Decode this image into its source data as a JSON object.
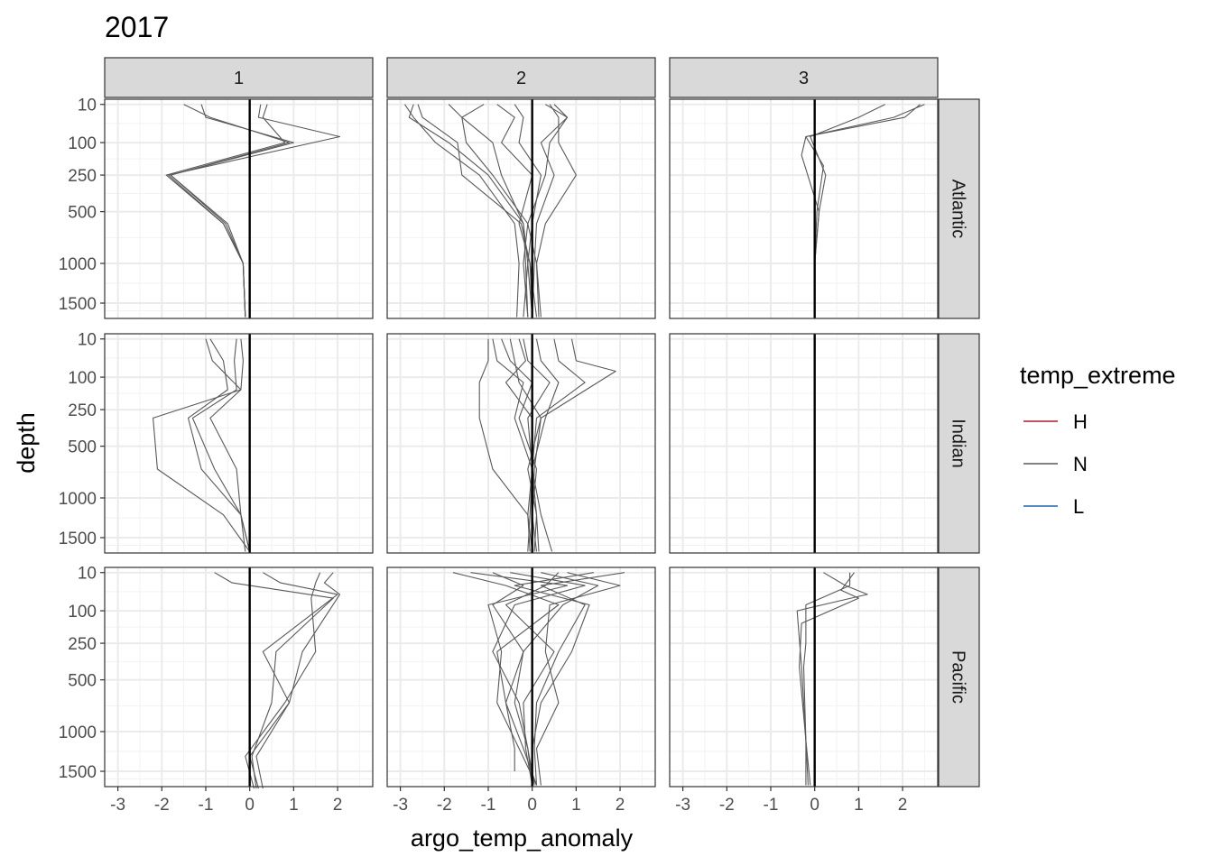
{
  "chart_data": {
    "type": "line",
    "title": "2017",
    "xlabel": "argo_temp_anomaly",
    "ylabel": "depth",
    "xlim": [
      -3.3,
      2.8
    ],
    "x_ticks": [
      -3,
      -2,
      -1,
      0,
      1,
      2
    ],
    "y_scale": "reversed sqrt",
    "ylim": [
      1720,
      5
    ],
    "y_ticks": [
      10,
      100,
      250,
      500,
      1000,
      1500
    ],
    "reference_line_x": 0,
    "grid": true,
    "facet_columns": [
      "1",
      "2",
      "3"
    ],
    "facet_rows": [
      "Atlantic",
      "Indian",
      "Pacific"
    ],
    "legend": {
      "title": "temp_extreme",
      "position": "right",
      "entries": [
        {
          "label": "H",
          "color": "#b2182b"
        },
        {
          "label": "N",
          "color": "#595959"
        },
        {
          "label": "L",
          "color": "#2166ac"
        }
      ]
    },
    "panels": [
      {
        "row": "Atlantic",
        "col": "1",
        "series": [
          {
            "x": [
              -1.5,
              -0.9,
              0.9,
              -1.8,
              -0.5,
              -0.15,
              -0.1
            ],
            "y": [
              10,
              30,
              100,
              250,
              600,
              1000,
              1700
            ]
          },
          {
            "x": [
              -1.1,
              -1.0,
              1.0,
              -1.8,
              -0.55,
              -0.15,
              -0.1
            ],
            "y": [
              10,
              30,
              100,
              250,
              600,
              1000,
              1700
            ]
          },
          {
            "x": [
              0.25,
              0.2,
              2.05,
              -1.85,
              -0.6,
              -0.15,
              -0.1
            ],
            "y": [
              10,
              30,
              80,
              250,
              600,
              1000,
              1700
            ]
          },
          {
            "x": [
              0.4,
              0.3,
              0.8,
              -1.9,
              -0.6,
              -0.15,
              -0.1
            ],
            "y": [
              10,
              30,
              100,
              250,
              600,
              1000,
              1700
            ]
          }
        ]
      },
      {
        "row": "Atlantic",
        "col": "2",
        "series": [
          {
            "x": [
              -2.9,
              -2.7,
              -2.2,
              -1.2,
              -0.4,
              -0.3,
              -0.35
            ],
            "y": [
              10,
              30,
              100,
              250,
              600,
              1000,
              1700
            ]
          },
          {
            "x": [
              -2.7,
              -2.8,
              -1.9,
              -1.0,
              -0.2,
              -0.15,
              -0.1
            ],
            "y": [
              10,
              30,
              100,
              250,
              600,
              1000,
              1700
            ]
          },
          {
            "x": [
              -2.6,
              -2.5,
              -1.7,
              -1.6,
              -0.25,
              -0.05,
              0.1
            ],
            "y": [
              10,
              30,
              100,
              250,
              600,
              1000,
              1700
            ]
          },
          {
            "x": [
              -1.9,
              -1.6,
              -1.5,
              -0.9,
              -0.1,
              -0.2,
              -0.1
            ],
            "y": [
              10,
              30,
              100,
              250,
              600,
              1000,
              1700
            ]
          },
          {
            "x": [
              -1.1,
              -1.6,
              -0.9,
              -0.7,
              -0.2,
              -0.1,
              0.0
            ],
            "y": [
              10,
              30,
              100,
              250,
              600,
              1000,
              1700
            ]
          },
          {
            "x": [
              -0.8,
              -0.4,
              -0.7,
              0.0,
              -0.3,
              -0.05,
              0.0
            ],
            "y": [
              10,
              30,
              100,
              250,
              600,
              1000,
              1700
            ]
          },
          {
            "x": [
              -0.4,
              -0.2,
              -0.3,
              0.2,
              0.0,
              -0.1,
              -0.2
            ],
            "y": [
              10,
              30,
              100,
              250,
              600,
              1000,
              1700
            ]
          },
          {
            "x": [
              0.3,
              0.8,
              0.2,
              0.5,
              0.1,
              0.05,
              0.0
            ],
            "y": [
              10,
              30,
              100,
              250,
              600,
              1000,
              1700
            ]
          },
          {
            "x": [
              0.4,
              0.6,
              0.6,
              1.0,
              0.3,
              0.1,
              0.2
            ],
            "y": [
              10,
              30,
              100,
              250,
              600,
              1000,
              1700
            ]
          },
          {
            "x": [
              0.5,
              0.8,
              0.4,
              0.3,
              -0.1,
              0.1,
              0.15
            ],
            "y": [
              10,
              30,
              100,
              250,
              600,
              1000,
              1700
            ]
          }
        ]
      },
      {
        "row": "Atlantic",
        "col": "3",
        "series": [
          {
            "x": [
              2.4,
              2.05,
              -0.2,
              -0.3,
              0.1,
              0.0,
              0.0
            ],
            "y": [
              10,
              30,
              80,
              150,
              500,
              1000,
              1700
            ]
          },
          {
            "x": [
              2.5,
              1.8,
              -0.2,
              0.2,
              0.05,
              0.0,
              0.0
            ],
            "y": [
              10,
              30,
              80,
              200,
              500,
              1000,
              1700
            ]
          },
          {
            "x": [
              1.6,
              1.0,
              -0.1,
              0.25,
              0.1,
              0.0,
              0.0
            ],
            "y": [
              10,
              30,
              80,
              250,
              500,
              1000,
              1700
            ]
          }
        ]
      },
      {
        "row": "Indian",
        "col": "1",
        "series": [
          {
            "x": [
              -1.0,
              -0.85,
              -0.2,
              -2.2,
              -2.1,
              -0.6,
              0.0
            ],
            "y": [
              10,
              50,
              150,
              300,
              700,
              1200,
              1700
            ]
          },
          {
            "x": [
              -0.9,
              -0.6,
              -0.5,
              -1.4,
              -1.1,
              -0.2,
              0.0
            ],
            "y": [
              10,
              50,
              150,
              300,
              700,
              1200,
              1700
            ]
          },
          {
            "x": [
              -0.3,
              -0.35,
              -0.3,
              -1.3,
              -0.8,
              -0.2,
              0.0
            ],
            "y": [
              10,
              50,
              150,
              300,
              700,
              1200,
              1700
            ]
          },
          {
            "x": [
              -0.2,
              -0.15,
              -0.2,
              -0.9,
              -0.3,
              -0.2,
              -0.1
            ],
            "y": [
              10,
              50,
              150,
              300,
              700,
              1200,
              1700
            ]
          }
        ]
      },
      {
        "row": "Indian",
        "col": "2",
        "series": [
          {
            "x": [
              -1.0,
              -1.0,
              -1.2,
              -1.2,
              -0.9,
              -0.1,
              0.0
            ],
            "y": [
              10,
              50,
              120,
              300,
              700,
              1200,
              1700
            ]
          },
          {
            "x": [
              -0.9,
              -0.8,
              -0.2,
              -0.4,
              0.0,
              -0.1,
              -0.05
            ],
            "y": [
              10,
              50,
              120,
              300,
              700,
              1200,
              1700
            ]
          },
          {
            "x": [
              -0.7,
              -0.5,
              0.0,
              -0.3,
              0.1,
              0.0,
              0.0
            ],
            "y": [
              10,
              50,
              120,
              300,
              700,
              1200,
              1700
            ]
          },
          {
            "x": [
              -0.5,
              -0.4,
              -0.3,
              0.2,
              0.05,
              0.0,
              0.1
            ],
            "y": [
              10,
              50,
              120,
              300,
              700,
              1200,
              1700
            ]
          },
          {
            "x": [
              -0.2,
              -0.1,
              0.4,
              -0.1,
              0.0,
              0.0,
              0.0
            ],
            "y": [
              10,
              50,
              120,
              300,
              700,
              1200,
              1700
            ]
          },
          {
            "x": [
              0.1,
              0.2,
              0.6,
              0.3,
              0.0,
              0.1,
              0.15
            ],
            "y": [
              10,
              50,
              120,
              300,
              700,
              1200,
              1700
            ]
          },
          {
            "x": [
              0.5,
              0.6,
              1.2,
              0.1,
              0.0,
              0.2,
              0.45
            ],
            "y": [
              10,
              50,
              120,
              300,
              700,
              1200,
              1700
            ]
          },
          {
            "x": [
              0.9,
              1.0,
              1.9,
              0.2,
              -0.1,
              0.1,
              0.05
            ],
            "y": [
              10,
              50,
              80,
              300,
              700,
              1200,
              1700
            ]
          },
          {
            "x": [
              -0.3,
              -0.15,
              -0.6,
              0.0,
              0.0,
              -0.05,
              -0.1
            ],
            "y": [
              10,
              50,
              120,
              300,
              700,
              1200,
              1700
            ]
          }
        ]
      },
      {
        "row": "Indian",
        "col": "3",
        "series": []
      },
      {
        "row": "Pacific",
        "col": "1",
        "series": [
          {
            "x": [
              -0.8,
              -0.4,
              1.9,
              0.6,
              0.5,
              0.05,
              0.15
            ],
            "y": [
              10,
              25,
              60,
              300,
              700,
              1300,
              1750
            ]
          },
          {
            "x": [
              0.3,
              0.7,
              2.0,
              0.3,
              0.9,
              0.0,
              0.2
            ],
            "y": [
              10,
              25,
              50,
              300,
              700,
              1300,
              1750
            ]
          },
          {
            "x": [
              1.9,
              1.7,
              2.05,
              1.2,
              0.9,
              0.15,
              0.3
            ],
            "y": [
              10,
              25,
              50,
              300,
              700,
              1300,
              1750
            ]
          },
          {
            "x": [
              1.6,
              1.5,
              1.4,
              1.5,
              0.8,
              -0.1,
              0.1
            ],
            "y": [
              10,
              25,
              60,
              300,
              700,
              1300,
              1750
            ]
          }
        ]
      },
      {
        "row": "Pacific",
        "col": "2",
        "series": [
          {
            "x": [
              -1.8,
              -0.6,
              0.6,
              -0.8,
              -0.6,
              -0.4,
              -0.4
            ],
            "y": [
              10,
              30,
              80,
              300,
              700,
              1200,
              1500
            ]
          },
          {
            "x": [
              -1.4,
              0.8,
              -1.0,
              -0.7,
              -0.8,
              -0.3,
              0.1
            ],
            "y": [
              10,
              30,
              80,
              300,
              700,
              1200,
              1700
            ]
          },
          {
            "x": [
              -0.5,
              1.2,
              -0.4,
              -0.9,
              -0.3,
              -0.1,
              0.0
            ],
            "y": [
              10,
              30,
              80,
              300,
              700,
              1200,
              1700
            ]
          },
          {
            "x": [
              0.2,
              1.5,
              0.7,
              -0.2,
              -0.6,
              -0.2,
              0.1
            ],
            "y": [
              10,
              30,
              80,
              300,
              700,
              1200,
              1700
            ]
          },
          {
            "x": [
              0.8,
              2.0,
              0.4,
              0.3,
              0.6,
              0.1,
              0.2
            ],
            "y": [
              10,
              30,
              80,
              300,
              700,
              1200,
              1700
            ]
          },
          {
            "x": [
              1.4,
              -0.4,
              1.3,
              0.9,
              0.2,
              0.0,
              0.0
            ],
            "y": [
              10,
              30,
              80,
              300,
              700,
              1200,
              1700
            ]
          },
          {
            "x": [
              2.1,
              0.2,
              1.2,
              0.6,
              0.1,
              0.05,
              0.1
            ],
            "y": [
              10,
              30,
              80,
              300,
              700,
              1200,
              1700
            ]
          },
          {
            "x": [
              -0.9,
              -0.2,
              -0.9,
              -0.2,
              -0.4,
              -0.1,
              0.05
            ],
            "y": [
              10,
              30,
              80,
              300,
              700,
              1200,
              1700
            ]
          },
          {
            "x": [
              0.6,
              0.3,
              -0.6,
              0.5,
              -0.2,
              -0.15,
              0.0
            ],
            "y": [
              10,
              30,
              80,
              300,
              700,
              1200,
              1700
            ]
          }
        ]
      },
      {
        "row": "Pacific",
        "col": "3",
        "series": [
          {
            "x": [
              0.2,
              0.7,
              1.2,
              -0.4,
              -0.3,
              -0.2,
              -0.1
            ],
            "y": [
              10,
              30,
              50,
              100,
              400,
              1100,
              1700
            ]
          },
          {
            "x": [
              0.9,
              0.6,
              1.0,
              -0.3,
              -0.35,
              -0.2,
              -0.15
            ],
            "y": [
              10,
              40,
              60,
              150,
              400,
              1100,
              1700
            ]
          },
          {
            "x": [
              0.8,
              0.8,
              -0.2,
              -0.2,
              -0.25,
              -0.2,
              -0.2
            ],
            "y": [
              10,
              30,
              80,
              250,
              400,
              1100,
              1700
            ]
          }
        ]
      }
    ]
  }
}
